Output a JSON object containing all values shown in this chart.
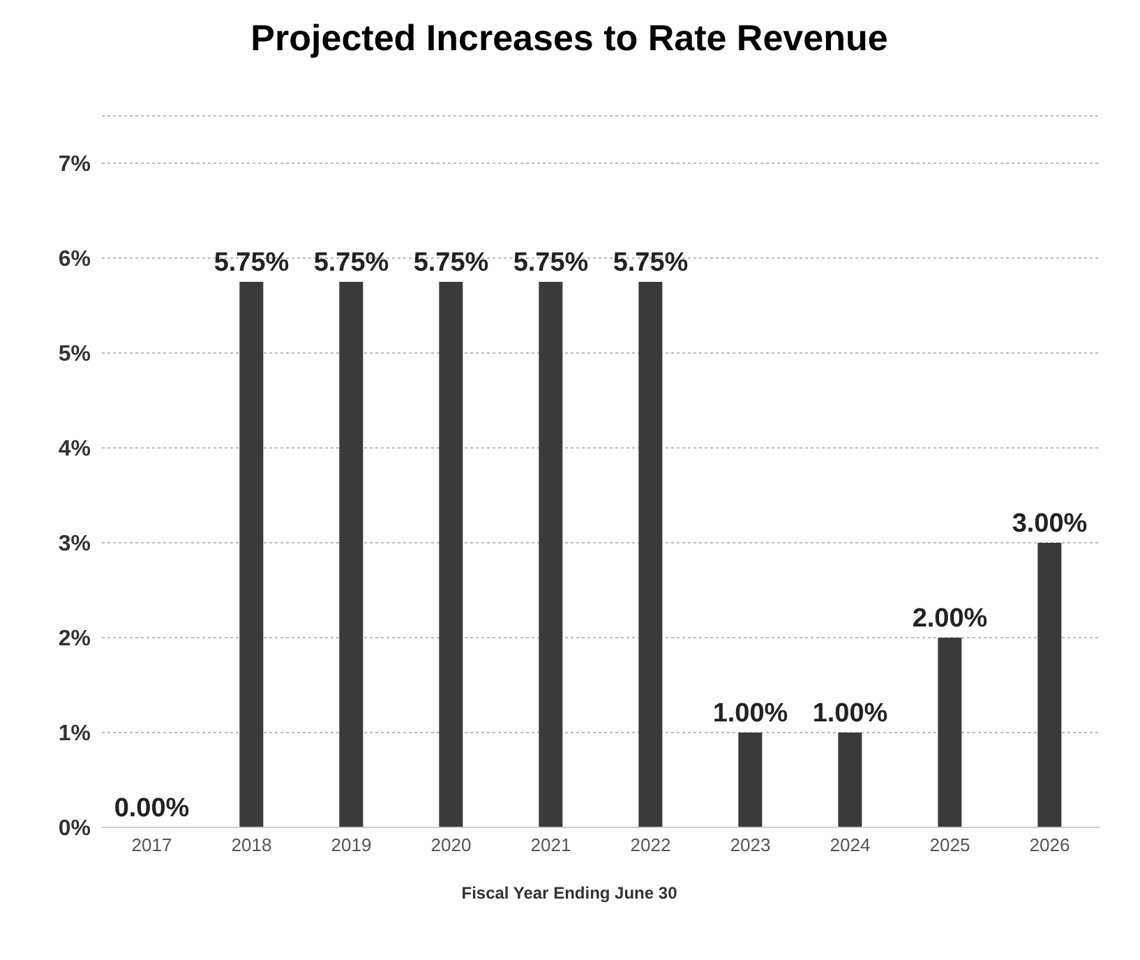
{
  "chart_data": {
    "type": "bar",
    "title": "Projected Increases to Rate Revenue",
    "xlabel": "Fiscal Year Ending June 30",
    "categories": [
      "2017",
      "2018",
      "2019",
      "2020",
      "2021",
      "2022",
      "2023",
      "2024",
      "2025",
      "2026"
    ],
    "values": [
      0,
      5.75,
      5.75,
      5.75,
      5.75,
      5.75,
      1,
      1,
      2,
      3
    ],
    "value_labels": [
      "0.00%",
      "5.75%",
      "5.75%",
      "5.75%",
      "5.75%",
      "5.75%",
      "1.00%",
      "1.00%",
      "2.00%",
      "3.00%"
    ],
    "color": "#3a3a3a",
    "ylim": [
      0,
      7.5
    ],
    "yticks": [
      {
        "value": 0,
        "label": "0%"
      },
      {
        "value": 1,
        "label": "1%"
      },
      {
        "value": 2,
        "label": "2%"
      },
      {
        "value": 3,
        "label": "3%"
      },
      {
        "value": 4,
        "label": "4%"
      },
      {
        "value": 5,
        "label": "5%"
      },
      {
        "value": 6,
        "label": "6%"
      },
      {
        "value": 7,
        "label": "7%"
      }
    ],
    "grid": "y",
    "legend": false
  }
}
